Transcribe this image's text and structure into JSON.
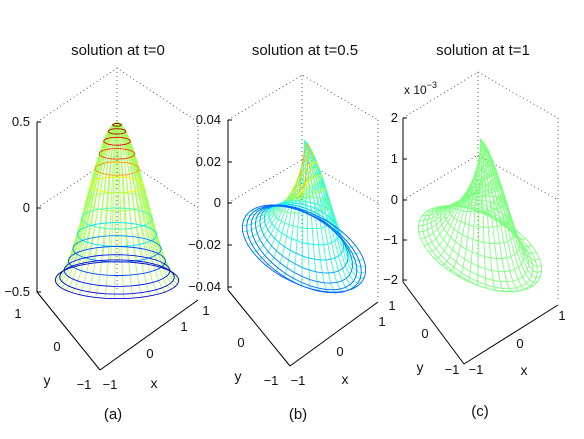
{
  "chart_data": [
    {
      "type": "surface",
      "panel": "(a)",
      "title": "solution at t=0",
      "xlabel": "x",
      "ylabel": "y",
      "x_ticks": [
        "−1",
        "0",
        "1"
      ],
      "y_ticks": [
        "−1",
        "0",
        "1"
      ],
      "z_ticks": [
        "−0.5",
        "0",
        "0.5"
      ],
      "z_exponent": "",
      "xlim": [
        -1,
        1
      ],
      "ylim": [
        -1,
        1
      ],
      "zlim": [
        -0.5,
        0.5
      ],
      "z_min_shown": -0.5,
      "z_max_shown": 0.5,
      "grid": true,
      "colormap": "jet"
    },
    {
      "type": "surface",
      "panel": "(b)",
      "title": "solution at t=0.5",
      "xlabel": "x",
      "ylabel": "y",
      "x_ticks": [
        "−1",
        "0",
        "1"
      ],
      "y_ticks": [
        "−1",
        "0",
        "1"
      ],
      "z_ticks": [
        "−0.04",
        "−0.02",
        "0",
        "0.02",
        "0.04"
      ],
      "z_exponent": "",
      "xlim": [
        -1,
        1
      ],
      "ylim": [
        -1,
        1
      ],
      "zlim": [
        -0.04,
        0.04
      ],
      "z_min_shown": -0.04,
      "z_max_shown": 0.03,
      "grid": true,
      "colormap": "jet"
    },
    {
      "type": "surface",
      "panel": "(c)",
      "title": "solution at t=1",
      "xlabel": "x",
      "ylabel": "y",
      "x_ticks": [
        "−1",
        "0",
        "1"
      ],
      "y_ticks": [
        "−1",
        "0",
        "1"
      ],
      "z_ticks": [
        "−2",
        "−1",
        "0",
        "1",
        "2"
      ],
      "z_exponent": "x 10",
      "z_exponent_power": "−3",
      "xlim": [
        -1,
        1
      ],
      "ylim": [
        -1,
        1
      ],
      "zlim": [
        -2,
        2
      ],
      "z_min_shown": -1.9,
      "z_max_shown": 1.5,
      "grid": true,
      "colormap": "jet"
    }
  ]
}
